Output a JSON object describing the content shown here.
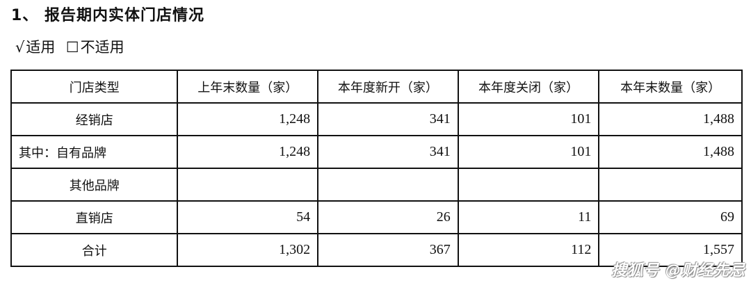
{
  "title": "1、 报告期内实体门店情况",
  "applicability": {
    "checked_mark": "√",
    "applicable": "适用",
    "unchecked_mark": "☐",
    "not_applicable": "不适用"
  },
  "table": {
    "headers": [
      "门店类型",
      "上年末数量（家）",
      "本年度新开（家）",
      "本年度关闭（家）",
      "本年末数量（家）"
    ],
    "rows": [
      {
        "type": "经销店",
        "align": "c",
        "values": [
          "1,248",
          "341",
          "101",
          "1,488"
        ]
      },
      {
        "type": "其中：自有品牌",
        "align": "l",
        "values": [
          "1,248",
          "341",
          "101",
          "1,488"
        ]
      },
      {
        "type": "其他品牌",
        "align": "c",
        "values": [
          "",
          "",
          "",
          ""
        ]
      },
      {
        "type": "直销店",
        "align": "c",
        "values": [
          "54",
          "26",
          "11",
          "69"
        ]
      },
      {
        "type": "合计",
        "align": "c",
        "values": [
          "1,302",
          "367",
          "112",
          "1,557"
        ]
      }
    ]
  },
  "watermark": "搜狐号 @财经先忌"
}
